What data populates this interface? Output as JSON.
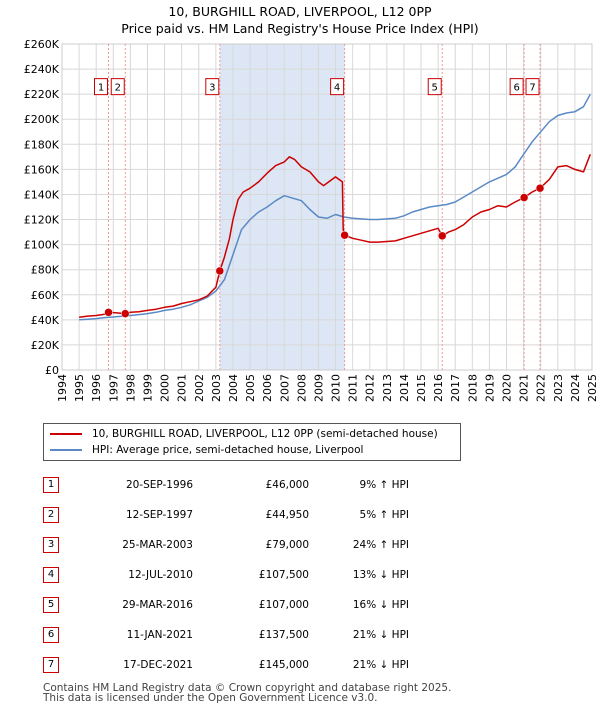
{
  "title_line1": "10, BURGHILL ROAD, LIVERPOOL, L12 0PP",
  "title_line2": "Price paid vs. HM Land Registry's House Price Index (HPI)",
  "legend": {
    "property_label": "10, BURGHILL ROAD, LIVERPOOL, L12 0PP (semi-detached house)",
    "hpi_label": "HPI: Average price, semi-detached house, Liverpool"
  },
  "colors": {
    "property": "#cc0000",
    "hpi": "#5a8ac6",
    "shade": "#dde6f5",
    "grid": "#d8d8d8",
    "vline": "#ee9999"
  },
  "sales": [
    {
      "num": "1",
      "date": "20-SEP-1996",
      "price": "£46,000",
      "hpi": "9% ↑ HPI",
      "year": 1996.72,
      "value": 46000
    },
    {
      "num": "2",
      "date": "12-SEP-1997",
      "price": "£44,950",
      "hpi": "5% ↑ HPI",
      "year": 1997.7,
      "value": 44950
    },
    {
      "num": "3",
      "date": "25-MAR-2003",
      "price": "£79,000",
      "hpi": "24% ↑ HPI",
      "year": 2003.23,
      "value": 79000
    },
    {
      "num": "4",
      "date": "12-JUL-2010",
      "price": "£107,500",
      "hpi": "13% ↓ HPI",
      "year": 2010.53,
      "value": 107500
    },
    {
      "num": "5",
      "date": "29-MAR-2016",
      "price": "£107,000",
      "hpi": "16% ↓ HPI",
      "year": 2016.24,
      "value": 107000
    },
    {
      "num": "6",
      "date": "11-JAN-2021",
      "price": "£137,500",
      "hpi": "21% ↓ HPI",
      "year": 2021.03,
      "value": 137500
    },
    {
      "num": "7",
      "date": "17-DEC-2021",
      "price": "£145,000",
      "hpi": "21% ↓ HPI",
      "year": 2021.96,
      "value": 145000
    }
  ],
  "footer_line1": "Contains HM Land Registry data © Crown copyright and database right 2025.",
  "footer_line2": "This data is licensed under the Open Government Licence v3.0.",
  "chart_data": {
    "type": "line",
    "title": "10, BURGHILL ROAD, LIVERPOOL, L12 0PP — Price paid vs. HM Land Registry's House Price Index (HPI)",
    "xlabel": "",
    "ylabel": "",
    "xlim": [
      1994,
      2025
    ],
    "ylim": [
      0,
      260000
    ],
    "x_ticks": [
      1994,
      1995,
      1996,
      1997,
      1998,
      1999,
      2000,
      2001,
      2002,
      2003,
      2004,
      2005,
      2006,
      2007,
      2008,
      2009,
      2010,
      2011,
      2012,
      2013,
      2014,
      2015,
      2016,
      2017,
      2018,
      2019,
      2020,
      2021,
      2022,
      2023,
      2024,
      2025
    ],
    "y_ticks": [
      0,
      20000,
      40000,
      60000,
      80000,
      100000,
      120000,
      140000,
      160000,
      180000,
      200000,
      220000,
      240000,
      260000
    ],
    "y_tick_labels": [
      "£0",
      "£20K",
      "£40K",
      "£60K",
      "£80K",
      "£100K",
      "£120K",
      "£140K",
      "£160K",
      "£180K",
      "£200K",
      "£220K",
      "£240K",
      "£260K"
    ],
    "grid": true,
    "shaded_period": [
      2003.23,
      2010.53
    ],
    "series": [
      {
        "name": "10, BURGHILL ROAD, LIVERPOOL, L12 0PP (semi-detached house)",
        "x": [
          1995.0,
          1995.5,
          1996.0,
          1996.5,
          1996.72,
          1997.2,
          1997.7,
          1998.0,
          1998.5,
          1999.0,
          1999.5,
          2000.0,
          2000.5,
          2001.0,
          2001.5,
          2002.0,
          2002.5,
          2003.0,
          2003.23,
          2003.5,
          2003.8,
          2004.0,
          2004.3,
          2004.6,
          2005.0,
          2005.5,
          2006.0,
          2006.5,
          2007.0,
          2007.3,
          2007.6,
          2008.0,
          2008.5,
          2009.0,
          2009.3,
          2009.6,
          2010.0,
          2010.4,
          2010.45,
          2010.53,
          2011.0,
          2011.5,
          2012.0,
          2012.5,
          2013.0,
          2013.5,
          2014.0,
          2014.5,
          2015.0,
          2015.5,
          2016.0,
          2016.24,
          2016.6,
          2017.0,
          2017.5,
          2018.0,
          2018.5,
          2019.0,
          2019.5,
          2020.0,
          2020.5,
          2021.03,
          2021.5,
          2021.96,
          2022.5,
          2023.0,
          2023.5,
          2024.0,
          2024.5,
          2024.9
        ],
        "values": [
          42000,
          43000,
          43500,
          44500,
          46000,
          45500,
          44950,
          46000,
          46500,
          47500,
          48500,
          50000,
          51000,
          53000,
          54500,
          56000,
          59000,
          66000,
          79000,
          90000,
          105000,
          120000,
          136000,
          142000,
          145000,
          150000,
          157000,
          163000,
          166000,
          170000,
          168000,
          162000,
          158000,
          150000,
          147000,
          150000,
          154000,
          150000,
          112000,
          107500,
          105000,
          103500,
          102000,
          102000,
          102500,
          103000,
          105000,
          107000,
          109000,
          111000,
          113000,
          107000,
          110000,
          112000,
          116000,
          122000,
          126000,
          128000,
          131000,
          130000,
          134000,
          137500,
          142000,
          145000,
          152000,
          162000,
          163000,
          160000,
          158000,
          172000
        ]
      },
      {
        "name": "HPI: Average price, semi-detached house, Liverpool",
        "x": [
          1995.0,
          1995.5,
          1996.0,
          1996.5,
          1997.0,
          1997.5,
          1998.0,
          1998.5,
          1999.0,
          1999.5,
          2000.0,
          2000.5,
          2001.0,
          2001.5,
          2002.0,
          2002.5,
          2003.0,
          2003.5,
          2004.0,
          2004.5,
          2005.0,
          2005.5,
          2006.0,
          2006.5,
          2007.0,
          2007.5,
          2008.0,
          2008.5,
          2009.0,
          2009.5,
          2010.0,
          2010.5,
          2011.0,
          2011.5,
          2012.0,
          2012.5,
          2013.0,
          2013.5,
          2014.0,
          2014.5,
          2015.0,
          2015.5,
          2016.0,
          2016.5,
          2017.0,
          2017.5,
          2018.0,
          2018.5,
          2019.0,
          2019.5,
          2020.0,
          2020.5,
          2021.0,
          2021.5,
          2022.0,
          2022.5,
          2023.0,
          2023.5,
          2024.0,
          2024.5,
          2024.9
        ],
        "values": [
          40000,
          40500,
          41000,
          41800,
          42300,
          42800,
          43500,
          44200,
          45000,
          46000,
          47500,
          48500,
          50000,
          52000,
          55000,
          58000,
          63000,
          72000,
          92000,
          112000,
          120000,
          126000,
          130000,
          135000,
          139000,
          137000,
          135000,
          128000,
          122000,
          121000,
          124000,
          122000,
          121000,
          120500,
          120000,
          120000,
          120500,
          121000,
          123000,
          126000,
          128000,
          130000,
          131000,
          132000,
          134000,
          138000,
          142000,
          146000,
          150000,
          153000,
          156000,
          162000,
          172000,
          182000,
          190000,
          198000,
          203000,
          205000,
          206000,
          210000,
          220000
        ]
      }
    ],
    "sale_points": [
      {
        "label": "1",
        "x": 1996.72,
        "y": 46000
      },
      {
        "label": "2",
        "x": 1997.7,
        "y": 44950
      },
      {
        "label": "3",
        "x": 2003.23,
        "y": 79000
      },
      {
        "label": "4",
        "x": 2010.53,
        "y": 107500
      },
      {
        "label": "5",
        "x": 2016.24,
        "y": 107000
      },
      {
        "label": "6",
        "x": 2021.03,
        "y": 137500
      },
      {
        "label": "7",
        "x": 2021.96,
        "y": 145000
      }
    ]
  }
}
